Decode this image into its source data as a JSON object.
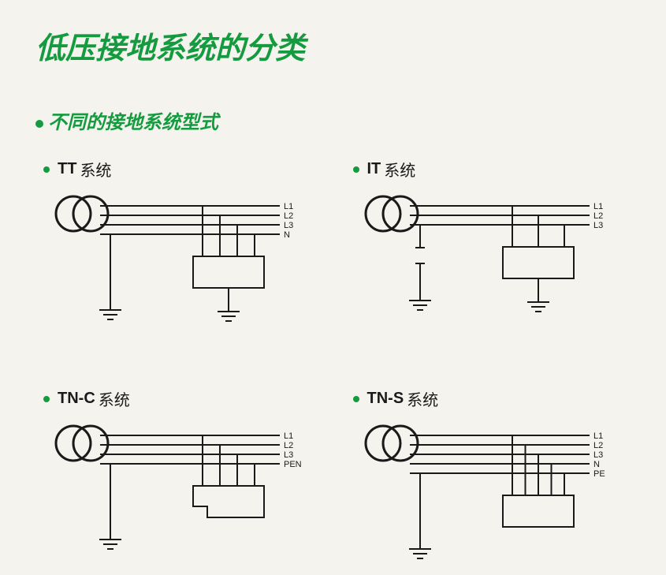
{
  "colors": {
    "green": "#159b3f",
    "line": "#1a1a1a",
    "background": "#f5f3ee",
    "text": "#1a1a1a"
  },
  "title": "低压接地系统的分类",
  "subtitle": "不同的接地系统型式",
  "diagram_style": {
    "stroke_width": 2,
    "circle_stroke_width": 3,
    "label_font_size": 11,
    "line_labels_font": "Arial"
  },
  "cells": [
    {
      "id": "tt",
      "name_prefix": "TT",
      "name_suffix": " 系统",
      "lines": [
        "L1",
        "L2",
        "L3",
        "N"
      ],
      "source_ground": true,
      "load_ground": true,
      "pe_line": false
    },
    {
      "id": "it",
      "name_prefix": "IT",
      "name_suffix": " 系统",
      "lines": [
        "L1",
        "L2",
        "L3"
      ],
      "source_ground": false,
      "source_ground_gap": true,
      "load_ground": true,
      "pe_line": false
    },
    {
      "id": "tnc",
      "name_prefix": "TN-C",
      "name_suffix": " 系统",
      "lines": [
        "L1",
        "L2",
        "L3",
        "PEN"
      ],
      "source_ground": true,
      "load_ground": false,
      "load_notch": true,
      "pe_line": false
    },
    {
      "id": "tns",
      "name_prefix": "TN-S",
      "name_suffix": " 系统",
      "lines": [
        "L1",
        "L2",
        "L3",
        "N",
        "PE"
      ],
      "source_ground": true,
      "load_ground": false,
      "pe_line": true
    }
  ]
}
